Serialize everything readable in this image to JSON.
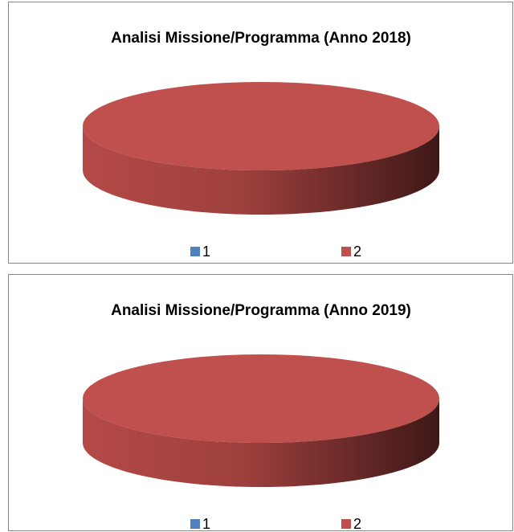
{
  "chart_data": [
    {
      "type": "pie",
      "title": "Analisi Missione/Programma (Anno 2018)",
      "categories": [
        "1",
        "2"
      ],
      "values": [
        0,
        100
      ],
      "colors": [
        "#4f81bd",
        "#c0504d"
      ]
    },
    {
      "type": "pie",
      "title": "Analisi Missione/Programma (Anno 2019)",
      "categories": [
        "1",
        "2"
      ],
      "values": [
        0,
        100
      ],
      "colors": [
        "#4f81bd",
        "#c0504d"
      ]
    }
  ]
}
